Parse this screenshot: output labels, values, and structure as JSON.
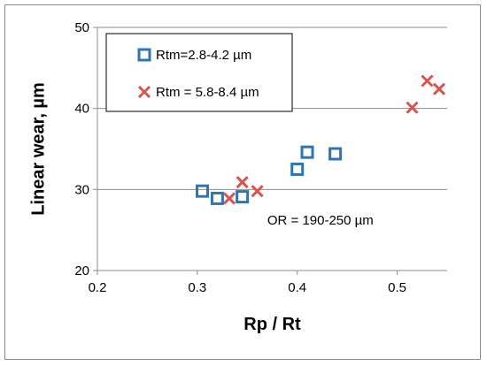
{
  "chart_data": {
    "type": "scatter",
    "title": "",
    "xlabel": "Rp / Rt",
    "ylabel": "Linear wear, µm",
    "xlim": [
      0.2,
      0.55
    ],
    "ylim": [
      20,
      50
    ],
    "x_ticks": [
      {
        "value": 0.2,
        "label": "0.2"
      },
      {
        "value": 0.3,
        "label": "0.3"
      },
      {
        "value": 0.4,
        "label": "0.4"
      },
      {
        "value": 0.5,
        "label": "0.5"
      }
    ],
    "y_ticks": [
      {
        "value": 20,
        "label": "20"
      },
      {
        "value": 30,
        "label": "30"
      },
      {
        "value": 40,
        "label": "40"
      },
      {
        "value": 50,
        "label": "50"
      }
    ],
    "grid": "horizontal",
    "legend_position": "top-left",
    "series": [
      {
        "name": "Rtm=2.8-4.2 µm",
        "marker": "square",
        "color": "#2e75b6",
        "points": [
          {
            "x": 0.305,
            "y": 29.8
          },
          {
            "x": 0.32,
            "y": 28.9
          },
          {
            "x": 0.345,
            "y": 29.1
          },
          {
            "x": 0.4,
            "y": 32.5
          },
          {
            "x": 0.41,
            "y": 34.6
          },
          {
            "x": 0.438,
            "y": 34.4
          }
        ]
      },
      {
        "name": "Rtm = 5.8-8.4 µm",
        "marker": "x",
        "color": "#d9534f",
        "points": [
          {
            "x": 0.332,
            "y": 28.9
          },
          {
            "x": 0.345,
            "y": 30.9
          },
          {
            "x": 0.36,
            "y": 29.8
          },
          {
            "x": 0.515,
            "y": 40.1
          },
          {
            "x": 0.53,
            "y": 43.4
          },
          {
            "x": 0.542,
            "y": 42.4
          }
        ]
      }
    ],
    "annotations": [
      {
        "text": "OR = 190-250 µm",
        "x": 0.37,
        "y": 25.7
      }
    ]
  }
}
